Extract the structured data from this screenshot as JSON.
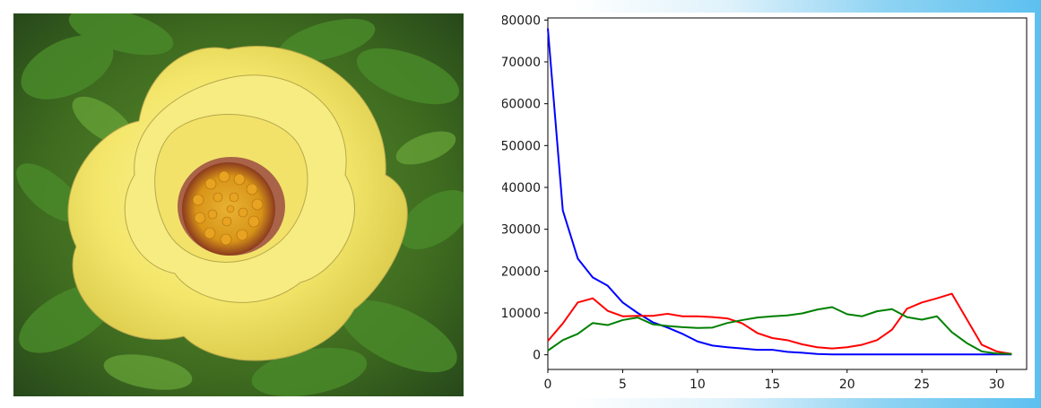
{
  "chart_data": {
    "type": "line",
    "title": "",
    "xlabel": "",
    "ylabel": "",
    "xlim": [
      0,
      32
    ],
    "ylim": [
      -3500,
      80500
    ],
    "x_ticks": [
      0,
      5,
      10,
      15,
      20,
      25,
      30
    ],
    "y_ticks": [
      0,
      10000,
      20000,
      30000,
      40000,
      50000,
      60000,
      70000,
      80000
    ],
    "x": [
      0,
      1,
      2,
      3,
      4,
      5,
      6,
      7,
      8,
      9,
      10,
      11,
      12,
      13,
      14,
      15,
      16,
      17,
      18,
      19,
      20,
      21,
      22,
      23,
      24,
      25,
      26,
      27,
      28,
      29,
      30,
      31
    ],
    "series": [
      {
        "color": "#0000ff",
        "values": [
          78000,
          34500,
          23000,
          18500,
          16500,
          12500,
          10000,
          7800,
          6500,
          5000,
          3200,
          2200,
          1800,
          1500,
          1200,
          1200,
          700,
          500,
          200,
          100,
          100,
          100,
          100,
          100,
          100,
          100,
          100,
          100,
          100,
          100,
          100,
          100
        ]
      },
      {
        "color": "#ff0000",
        "values": [
          3300,
          7500,
          12500,
          13500,
          10500,
          9200,
          9300,
          9300,
          9800,
          9200,
          9200,
          9000,
          8700,
          7500,
          5200,
          4000,
          3500,
          2500,
          1800,
          1500,
          1800,
          2400,
          3500,
          6000,
          11000,
          12500,
          13500,
          14600,
          8500,
          2400,
          800,
          200
        ]
      },
      {
        "color": "#008000",
        "values": [
          1000,
          3500,
          5000,
          7600,
          7100,
          8300,
          8900,
          7300,
          6900,
          6600,
          6400,
          6500,
          7600,
          8300,
          8900,
          9200,
          9400,
          9900,
          10800,
          11400,
          9700,
          9200,
          10400,
          10900,
          9000,
          8400,
          9200,
          5400,
          2800,
          800,
          300,
          200
        ]
      }
    ],
    "grid": false,
    "legend": "none"
  },
  "image": {
    "subject": "photo-of-yellow-flower"
  }
}
